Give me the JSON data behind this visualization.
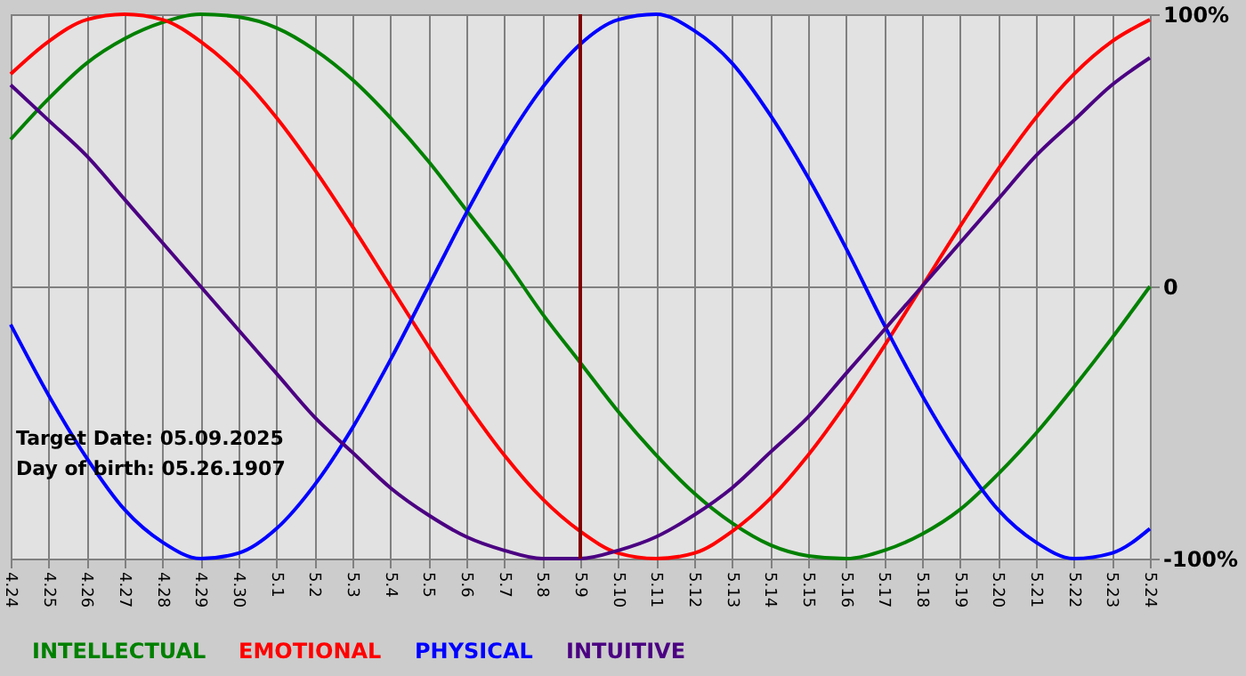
{
  "chart_data": {
    "type": "line",
    "categories": [
      "4.24",
      "4.25",
      "4.26",
      "4.27",
      "4.28",
      "4.29",
      "4.30",
      "5.1",
      "5.2",
      "5.3",
      "5.4",
      "5.5",
      "5.6",
      "5.7",
      "5.8",
      "5.9",
      "5.10",
      "5.11",
      "5.12",
      "5.13",
      "5.14",
      "5.15",
      "5.16",
      "5.17",
      "5.18",
      "5.19",
      "5.20",
      "5.21",
      "5.22",
      "5.23",
      "5.24"
    ],
    "series": [
      {
        "name": "INTELLECTUAL",
        "color": "#008000",
        "values": [
          54,
          69,
          82,
          91,
          97,
          100,
          99,
          95,
          87,
          76,
          62,
          46,
          28,
          10,
          -10,
          -28,
          -46,
          -62,
          -76,
          -87,
          -95,
          -99,
          -100,
          -97,
          -91,
          -82,
          -69,
          -54,
          -37,
          -19,
          0
        ]
      },
      {
        "name": "EMOTIONAL",
        "color": "#ff0000",
        "values": [
          78,
          90,
          98,
          100,
          98,
          90,
          78,
          62,
          43,
          22,
          0,
          -22,
          -43,
          -62,
          -78,
          -90,
          -98,
          -100,
          -98,
          -90,
          -78,
          -62,
          -43,
          -22,
          0,
          22,
          43,
          62,
          78,
          90,
          98
        ]
      },
      {
        "name": "PHYSICAL",
        "color": "#0000ff",
        "values": [
          -14,
          -40,
          -63,
          -82,
          -94,
          -100,
          -98,
          -89,
          -73,
          -52,
          -27,
          0,
          27,
          52,
          73,
          89,
          98,
          100,
          94,
          82,
          63,
          40,
          14,
          -14,
          -40,
          -63,
          -82,
          -94,
          -100,
          -98,
          -89
        ]
      },
      {
        "name": "INTUITIVE",
        "color": "#4b0082",
        "values": [
          74,
          61,
          48,
          32,
          16,
          0,
          -16,
          -32,
          -48,
          -61,
          -74,
          -84,
          -92,
          -97,
          -100,
          -100,
          -97,
          -92,
          -84,
          -74,
          -61,
          -48,
          -32,
          -16,
          0,
          16,
          32,
          48,
          61,
          74,
          84
        ]
      }
    ],
    "ylim": [
      -100,
      100
    ],
    "yticks": [
      {
        "value": 100,
        "label": "100%"
      },
      0,
      {
        "value": -100,
        "label": "-100%"
      }
    ],
    "grid": true,
    "legend": "bottom",
    "ref_lines": [
      {
        "axis": "x",
        "value": "5.9",
        "color": "#800000"
      }
    ],
    "annotations": [
      "Target Date: 05.09.2025",
      "Day of birth: 05.26.1907"
    ]
  }
}
